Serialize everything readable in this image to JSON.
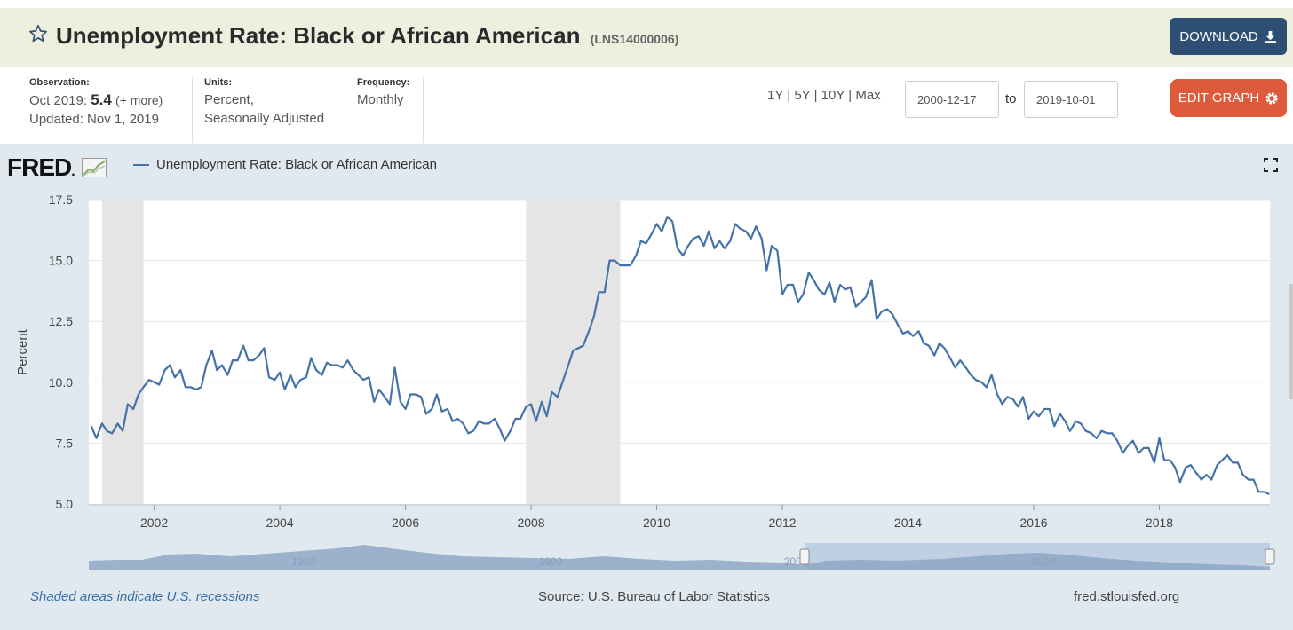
{
  "header": {
    "title": "Unemployment Rate: Black or African American",
    "series_id": "(LNS14000006)",
    "download_label": "DOWNLOAD"
  },
  "meta": {
    "observation_label": "Observation:",
    "observation_date": "Oct 2019:",
    "observation_value": "5.4",
    "observation_more": "(+ more)",
    "updated": "Updated: Nov 1, 2019",
    "units_label": "Units:",
    "units_line1": "Percent,",
    "units_line2": "Seasonally Adjusted",
    "frequency_label": "Frequency:",
    "frequency_value": "Monthly"
  },
  "controls": {
    "range_1y": "1Y",
    "range_5y": "5Y",
    "range_10y": "10Y",
    "range_max": "Max",
    "sep": "|",
    "start_date": "2000-12-17",
    "to_label": "to",
    "end_date": "2019-10-01",
    "edit_label": "EDIT GRAPH"
  },
  "brand": {
    "logo_text": "FRED",
    "logo_suffix": "."
  },
  "footer": {
    "recession_note": "Shaded areas indicate U.S. recessions",
    "source": "Source: U.S. Bureau of Labor Statistics",
    "url": "fred.stlouisfed.org"
  },
  "colors": {
    "line": "#4572a7",
    "recession": "#e5e5e5",
    "download": "#2d4f73",
    "edit": "#dd5a3b"
  },
  "chart_data": {
    "type": "line",
    "title": "Unemployment Rate: Black or African American",
    "xlabel": "",
    "ylabel": "Percent",
    "ylim": [
      5.0,
      17.5
    ],
    "xlim": [
      2000.96,
      2019.76
    ],
    "yticks": [
      5.0,
      7.5,
      10.0,
      12.5,
      15.0,
      17.5
    ],
    "ytick_labels": [
      "5.0",
      "7.5",
      "10.0",
      "12.5",
      "15.0",
      "17.5"
    ],
    "xticks": [
      2002,
      2004,
      2006,
      2008,
      2010,
      2012,
      2014,
      2016,
      2018
    ],
    "xtick_labels": [
      "2002",
      "2004",
      "2006",
      "2008",
      "2010",
      "2012",
      "2014",
      "2016",
      "2018"
    ],
    "grid": true,
    "legend": "top-left",
    "recessions": [
      [
        2001.17,
        2001.83
      ],
      [
        2007.92,
        2009.42
      ]
    ],
    "series": [
      {
        "name": "Unemployment Rate: Black or African American",
        "points": [
          [
            2001.0,
            8.2
          ],
          [
            2001.08,
            7.7
          ],
          [
            2001.17,
            8.3
          ],
          [
            2001.25,
            8.0
          ],
          [
            2001.33,
            7.9
          ],
          [
            2001.42,
            8.3
          ],
          [
            2001.5,
            8.0
          ],
          [
            2001.58,
            9.1
          ],
          [
            2001.67,
            8.9
          ],
          [
            2001.75,
            9.5
          ],
          [
            2001.83,
            9.8
          ],
          [
            2001.92,
            10.1
          ],
          [
            2002.0,
            10.0
          ],
          [
            2002.08,
            9.9
          ],
          [
            2002.17,
            10.5
          ],
          [
            2002.25,
            10.7
          ],
          [
            2002.33,
            10.2
          ],
          [
            2002.42,
            10.5
          ],
          [
            2002.5,
            9.8
          ],
          [
            2002.58,
            9.8
          ],
          [
            2002.67,
            9.7
          ],
          [
            2002.75,
            9.8
          ],
          [
            2002.83,
            10.7
          ],
          [
            2002.92,
            11.3
          ],
          [
            2003.0,
            10.5
          ],
          [
            2003.08,
            10.7
          ],
          [
            2003.17,
            10.3
          ],
          [
            2003.25,
            10.9
          ],
          [
            2003.33,
            10.9
          ],
          [
            2003.42,
            11.5
          ],
          [
            2003.5,
            10.9
          ],
          [
            2003.58,
            10.9
          ],
          [
            2003.67,
            11.1
          ],
          [
            2003.75,
            11.4
          ],
          [
            2003.83,
            10.2
          ],
          [
            2003.92,
            10.1
          ],
          [
            2004.0,
            10.4
          ],
          [
            2004.08,
            9.7
          ],
          [
            2004.17,
            10.3
          ],
          [
            2004.25,
            9.8
          ],
          [
            2004.33,
            10.1
          ],
          [
            2004.42,
            10.2
          ],
          [
            2004.5,
            11.0
          ],
          [
            2004.58,
            10.5
          ],
          [
            2004.67,
            10.3
          ],
          [
            2004.75,
            10.8
          ],
          [
            2004.83,
            10.7
          ],
          [
            2004.92,
            10.7
          ],
          [
            2005.0,
            10.6
          ],
          [
            2005.08,
            10.9
          ],
          [
            2005.17,
            10.5
          ],
          [
            2005.25,
            10.3
          ],
          [
            2005.33,
            10.1
          ],
          [
            2005.42,
            10.2
          ],
          [
            2005.5,
            9.2
          ],
          [
            2005.58,
            9.7
          ],
          [
            2005.67,
            9.4
          ],
          [
            2005.75,
            9.1
          ],
          [
            2005.83,
            10.6
          ],
          [
            2005.92,
            9.2
          ],
          [
            2006.0,
            8.9
          ],
          [
            2006.08,
            9.5
          ],
          [
            2006.17,
            9.5
          ],
          [
            2006.25,
            9.4
          ],
          [
            2006.33,
            8.7
          ],
          [
            2006.42,
            8.9
          ],
          [
            2006.5,
            9.5
          ],
          [
            2006.58,
            8.8
          ],
          [
            2006.67,
            8.9
          ],
          [
            2006.75,
            8.4
          ],
          [
            2006.83,
            8.5
          ],
          [
            2006.92,
            8.3
          ],
          [
            2007.0,
            7.9
          ],
          [
            2007.08,
            8.0
          ],
          [
            2007.17,
            8.4
          ],
          [
            2007.25,
            8.3
          ],
          [
            2007.33,
            8.3
          ],
          [
            2007.42,
            8.5
          ],
          [
            2007.5,
            8.1
          ],
          [
            2007.58,
            7.6
          ],
          [
            2007.67,
            8.0
          ],
          [
            2007.75,
            8.5
          ],
          [
            2007.83,
            8.5
          ],
          [
            2007.92,
            9.0
          ],
          [
            2008.0,
            9.1
          ],
          [
            2008.08,
            8.4
          ],
          [
            2008.17,
            9.2
          ],
          [
            2008.25,
            8.6
          ],
          [
            2008.33,
            9.6
          ],
          [
            2008.42,
            9.4
          ],
          [
            2008.5,
            10.0
          ],
          [
            2008.58,
            10.6
          ],
          [
            2008.67,
            11.3
          ],
          [
            2008.75,
            11.4
          ],
          [
            2008.83,
            11.5
          ],
          [
            2008.92,
            12.1
          ],
          [
            2009.0,
            12.7
          ],
          [
            2009.08,
            13.7
          ],
          [
            2009.17,
            13.7
          ],
          [
            2009.25,
            15.0
          ],
          [
            2009.33,
            15.0
          ],
          [
            2009.42,
            14.8
          ],
          [
            2009.5,
            14.8
          ],
          [
            2009.58,
            14.8
          ],
          [
            2009.67,
            15.2
          ],
          [
            2009.75,
            15.8
          ],
          [
            2009.83,
            15.7
          ],
          [
            2009.92,
            16.1
          ],
          [
            2010.0,
            16.5
          ],
          [
            2010.08,
            16.2
          ],
          [
            2010.17,
            16.8
          ],
          [
            2010.25,
            16.6
          ],
          [
            2010.33,
            15.5
          ],
          [
            2010.42,
            15.2
          ],
          [
            2010.5,
            15.6
          ],
          [
            2010.58,
            15.9
          ],
          [
            2010.67,
            16.0
          ],
          [
            2010.75,
            15.6
          ],
          [
            2010.83,
            16.2
          ],
          [
            2010.92,
            15.5
          ],
          [
            2011.0,
            15.8
          ],
          [
            2011.08,
            15.5
          ],
          [
            2011.17,
            15.8
          ],
          [
            2011.25,
            16.5
          ],
          [
            2011.33,
            16.3
          ],
          [
            2011.42,
            16.2
          ],
          [
            2011.5,
            15.9
          ],
          [
            2011.58,
            16.4
          ],
          [
            2011.67,
            15.9
          ],
          [
            2011.75,
            14.6
          ],
          [
            2011.83,
            15.6
          ],
          [
            2011.92,
            15.4
          ],
          [
            2012.0,
            13.6
          ],
          [
            2012.08,
            14.0
          ],
          [
            2012.17,
            14.0
          ],
          [
            2012.25,
            13.3
          ],
          [
            2012.33,
            13.6
          ],
          [
            2012.42,
            14.5
          ],
          [
            2012.5,
            14.2
          ],
          [
            2012.58,
            13.8
          ],
          [
            2012.67,
            13.6
          ],
          [
            2012.75,
            14.1
          ],
          [
            2012.83,
            13.3
          ],
          [
            2012.92,
            14.0
          ],
          [
            2013.0,
            13.8
          ],
          [
            2013.08,
            13.9
          ],
          [
            2013.17,
            13.1
          ],
          [
            2013.25,
            13.3
          ],
          [
            2013.33,
            13.5
          ],
          [
            2013.42,
            14.2
          ],
          [
            2013.5,
            12.6
          ],
          [
            2013.58,
            12.9
          ],
          [
            2013.67,
            13.0
          ],
          [
            2013.75,
            12.8
          ],
          [
            2013.83,
            12.4
          ],
          [
            2013.92,
            12.0
          ],
          [
            2014.0,
            12.1
          ],
          [
            2014.08,
            11.9
          ],
          [
            2014.17,
            12.1
          ],
          [
            2014.25,
            11.6
          ],
          [
            2014.33,
            11.5
          ],
          [
            2014.42,
            11.1
          ],
          [
            2014.5,
            11.6
          ],
          [
            2014.58,
            11.4
          ],
          [
            2014.67,
            11.0
          ],
          [
            2014.75,
            10.6
          ],
          [
            2014.83,
            10.9
          ],
          [
            2014.92,
            10.6
          ],
          [
            2015.0,
            10.3
          ],
          [
            2015.08,
            10.1
          ],
          [
            2015.17,
            10.0
          ],
          [
            2015.25,
            9.8
          ],
          [
            2015.33,
            10.3
          ],
          [
            2015.42,
            9.5
          ],
          [
            2015.5,
            9.1
          ],
          [
            2015.58,
            9.4
          ],
          [
            2015.67,
            9.3
          ],
          [
            2015.75,
            9.0
          ],
          [
            2015.83,
            9.4
          ],
          [
            2015.92,
            8.5
          ],
          [
            2016.0,
            8.8
          ],
          [
            2016.08,
            8.6
          ],
          [
            2016.17,
            8.9
          ],
          [
            2016.25,
            8.9
          ],
          [
            2016.33,
            8.2
          ],
          [
            2016.42,
            8.7
          ],
          [
            2016.5,
            8.4
          ],
          [
            2016.58,
            8.0
          ],
          [
            2016.67,
            8.4
          ],
          [
            2016.75,
            8.3
          ],
          [
            2016.83,
            8.0
          ],
          [
            2016.92,
            7.9
          ],
          [
            2017.0,
            7.7
          ],
          [
            2017.08,
            8.0
          ],
          [
            2017.17,
            7.9
          ],
          [
            2017.25,
            7.9
          ],
          [
            2017.33,
            7.6
          ],
          [
            2017.42,
            7.1
          ],
          [
            2017.5,
            7.4
          ],
          [
            2017.58,
            7.6
          ],
          [
            2017.67,
            7.1
          ],
          [
            2017.75,
            7.3
          ],
          [
            2017.83,
            7.3
          ],
          [
            2017.92,
            6.7
          ],
          [
            2018.0,
            7.7
          ],
          [
            2018.08,
            6.8
          ],
          [
            2018.17,
            6.8
          ],
          [
            2018.25,
            6.5
          ],
          [
            2018.33,
            5.9
          ],
          [
            2018.42,
            6.5
          ],
          [
            2018.5,
            6.6
          ],
          [
            2018.58,
            6.3
          ],
          [
            2018.67,
            6.0
          ],
          [
            2018.75,
            6.2
          ],
          [
            2018.83,
            6.0
          ],
          [
            2018.92,
            6.6
          ],
          [
            2019.0,
            6.8
          ],
          [
            2019.08,
            7.0
          ],
          [
            2019.17,
            6.7
          ],
          [
            2019.25,
            6.7
          ],
          [
            2019.33,
            6.2
          ],
          [
            2019.42,
            6.0
          ],
          [
            2019.5,
            6.0
          ],
          [
            2019.58,
            5.5
          ],
          [
            2019.67,
            5.5
          ],
          [
            2019.75,
            5.4
          ]
        ]
      }
    ],
    "navigator": {
      "xtick_labels": [
        "1980",
        "1990",
        "2000",
        "2010"
      ],
      "selected_range": [
        "2000-12-17",
        "2019-10-01"
      ]
    }
  }
}
